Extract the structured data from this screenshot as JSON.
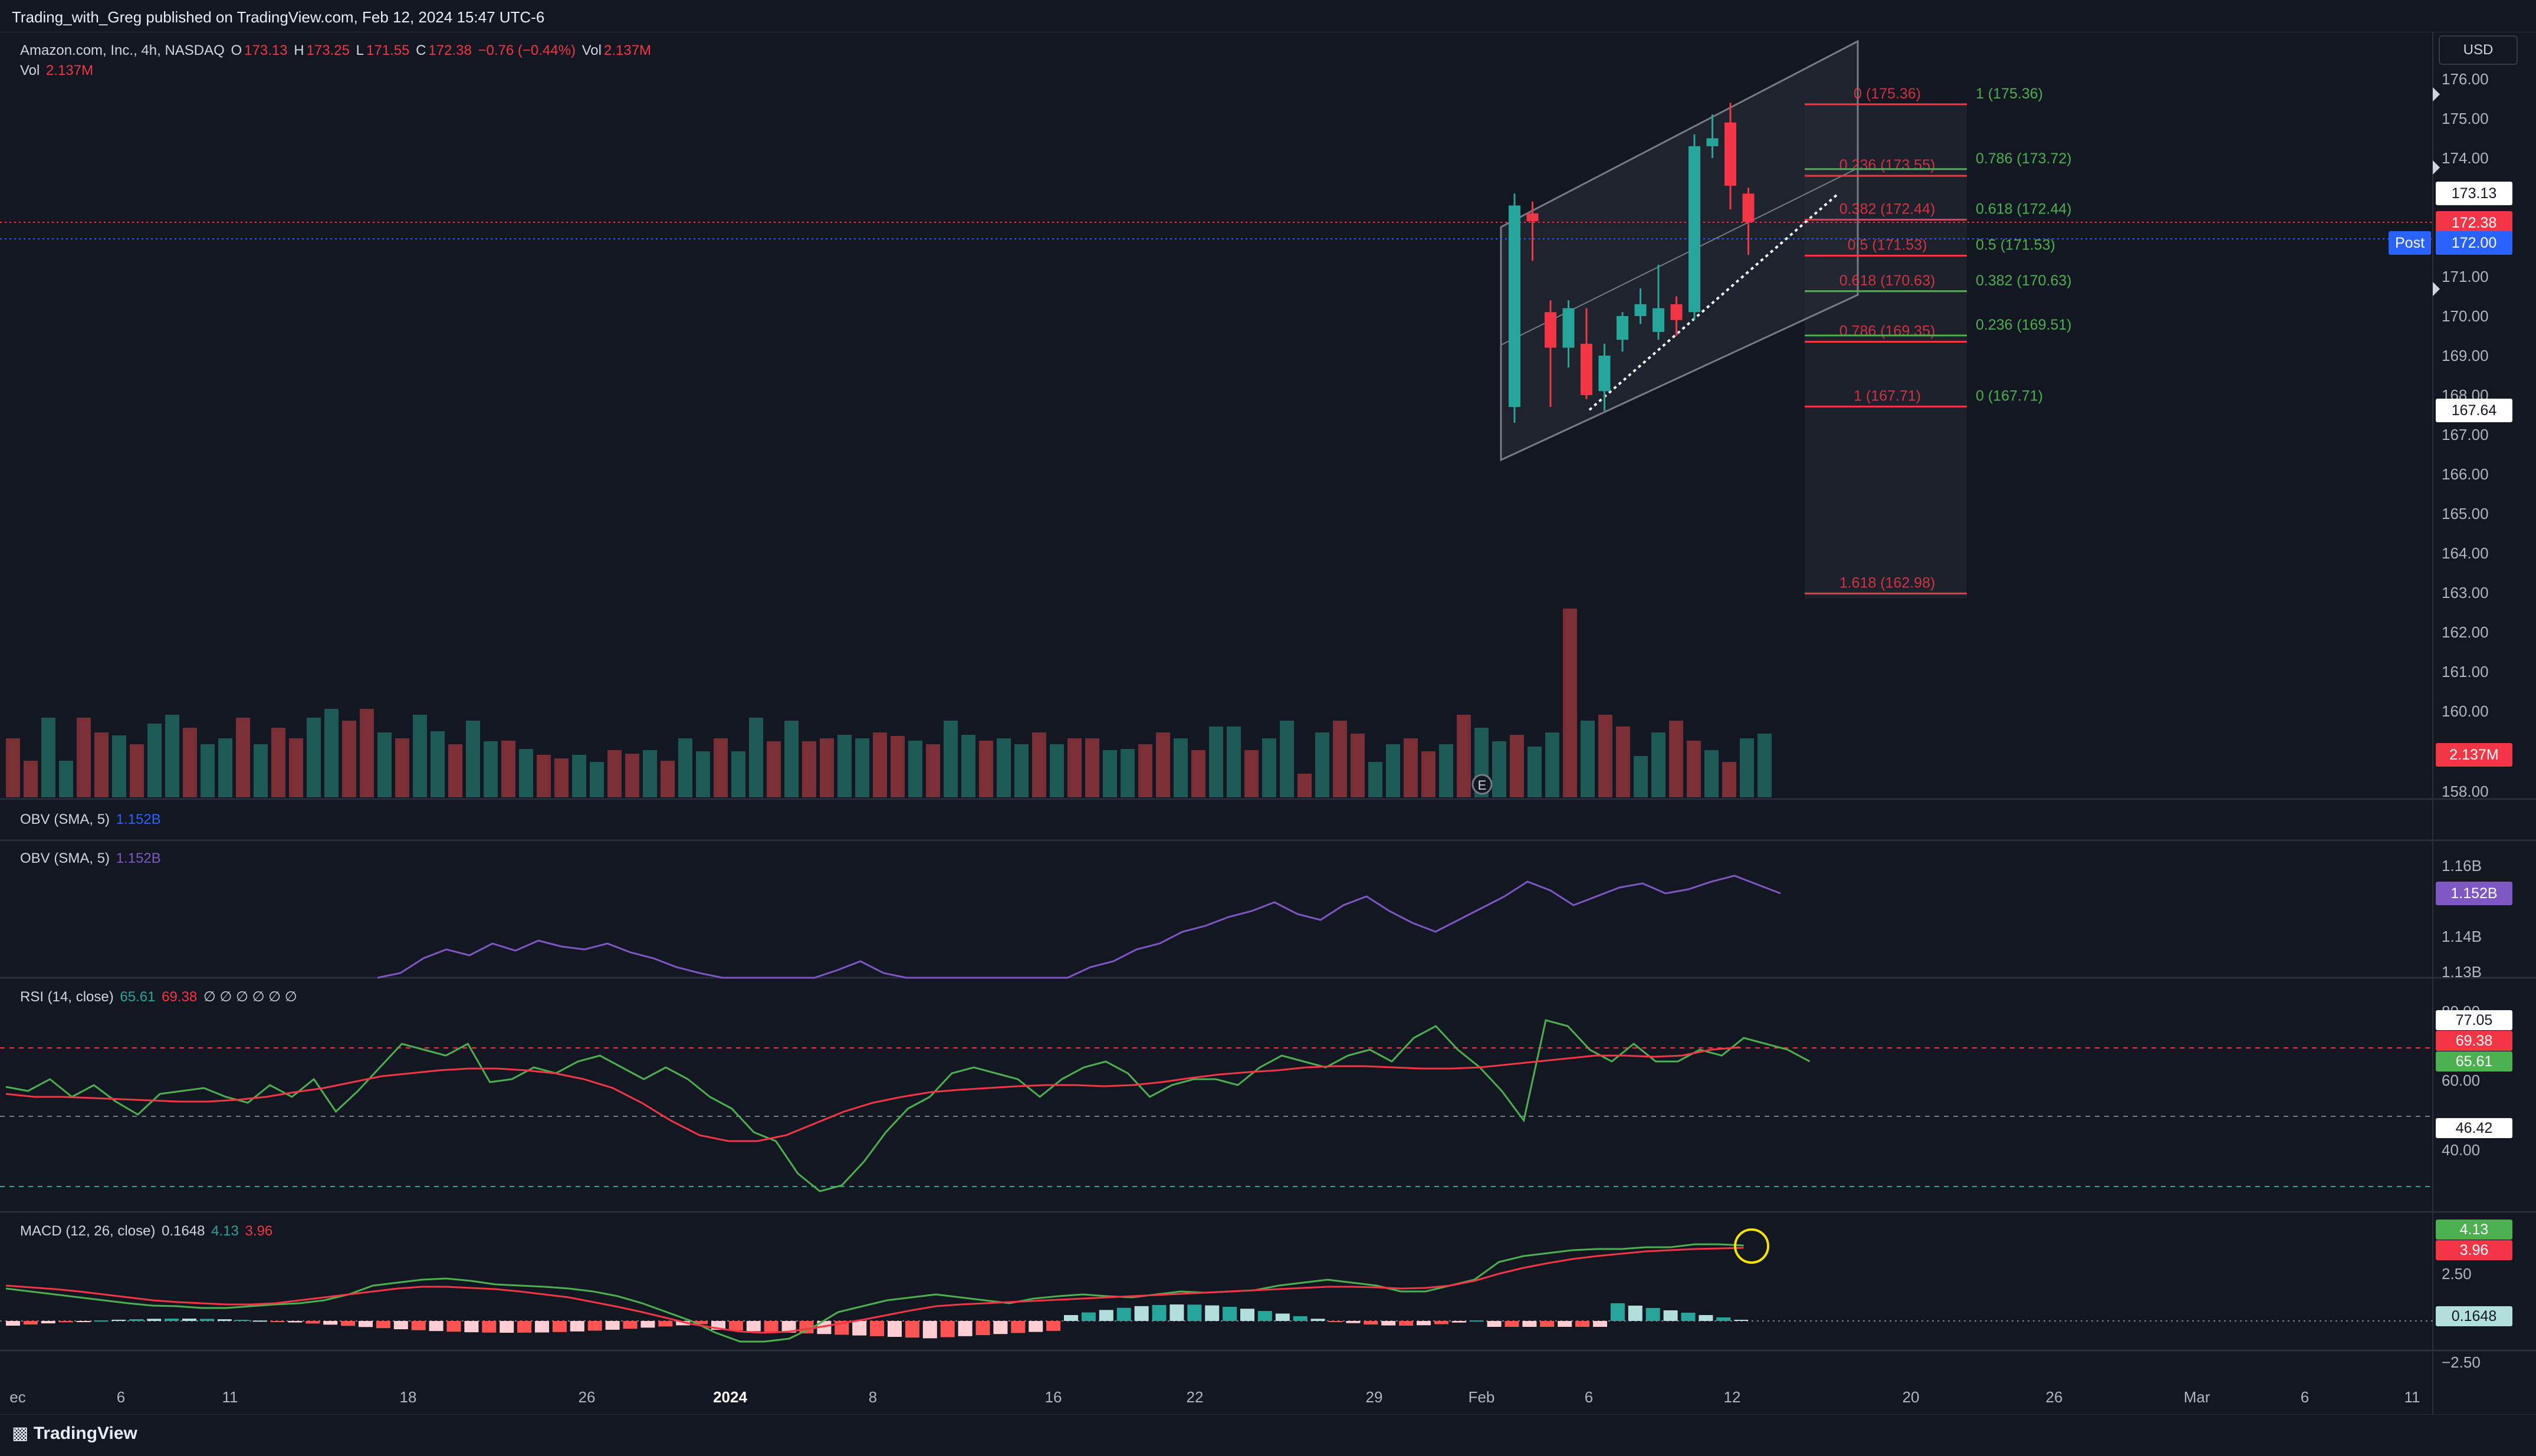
{
  "header": {
    "published": "Trading_with_Greg published on TradingView.com, Feb 12, 2024 15:47 UTC-6"
  },
  "symbol": {
    "name": "Amazon.com, Inc., 4h, NASDAQ",
    "o_label": "O",
    "o": "173.13",
    "h_label": "H",
    "h": "173.25",
    "l_label": "L",
    "l": "171.55",
    "c_label": "C",
    "c": "172.38",
    "change": "−0.76 (−0.44%)",
    "vol_label": "Vol",
    "vol": "2.137M",
    "vol_line_label": "Vol",
    "vol_line": "2.137M"
  },
  "currency": "USD",
  "price_axis": {
    "ticks": [
      "176.00",
      "175.00",
      "174.00",
      "173.00",
      "172.00",
      "171.00",
      "170.00",
      "169.00",
      "168.00",
      "167.00",
      "166.00",
      "165.00",
      "164.00",
      "163.00",
      "162.00",
      "161.00",
      "160.00",
      "158.00"
    ],
    "open_badge": "173.13",
    "close_badge": "172.38",
    "post_label": "Post",
    "post_badge": "172.00",
    "low_badge": "167.64",
    "vol_badge": "2.137M"
  },
  "fib_left": [
    {
      "label": "0 (175.36)",
      "price": 175.36
    },
    {
      "label": "0.236 (173.55)",
      "price": 173.55
    },
    {
      "label": "0.382 (172.44)",
      "price": 172.44
    },
    {
      "label": "0.5 (171.53)",
      "price": 171.53
    },
    {
      "label": "0.618 (170.63)",
      "price": 170.63
    },
    {
      "label": "0.786 (169.35)",
      "price": 169.35
    },
    {
      "label": "1 (167.71)",
      "price": 167.71
    },
    {
      "label": "1.618 (162.98)",
      "price": 162.98
    }
  ],
  "fib_right": [
    {
      "label": "1 (175.36)",
      "price": 175.36
    },
    {
      "label": "0.786 (173.72)",
      "price": 173.72
    },
    {
      "label": "0.618 (172.44)",
      "price": 172.44
    },
    {
      "label": "0.5 (171.53)",
      "price": 171.53
    },
    {
      "label": "0.382 (170.63)",
      "price": 170.63
    },
    {
      "label": "0.236 (169.51)",
      "price": 169.51
    },
    {
      "label": "0 (167.71)",
      "price": 167.71
    }
  ],
  "candles": [
    {
      "o": 167.7,
      "h": 173.1,
      "l": 167.3,
      "c": 172.8
    },
    {
      "o": 172.6,
      "h": 172.9,
      "l": 171.4,
      "c": 172.4
    },
    {
      "o": 170.1,
      "h": 170.4,
      "l": 167.7,
      "c": 169.2
    },
    {
      "o": 169.2,
      "h": 170.4,
      "l": 168.7,
      "c": 170.2
    },
    {
      "o": 169.3,
      "h": 170.2,
      "l": 167.9,
      "c": 168.0
    },
    {
      "o": 168.1,
      "h": 169.3,
      "l": 167.6,
      "c": 169.0
    },
    {
      "o": 169.4,
      "h": 170.1,
      "l": 169.1,
      "c": 170.0
    },
    {
      "o": 170.0,
      "h": 170.7,
      "l": 169.8,
      "c": 170.3
    },
    {
      "o": 169.6,
      "h": 171.3,
      "l": 169.4,
      "c": 170.2
    },
    {
      "o": 170.3,
      "h": 170.5,
      "l": 169.5,
      "c": 169.9
    },
    {
      "o": 170.1,
      "h": 174.6,
      "l": 169.9,
      "c": 174.3
    },
    {
      "o": 174.3,
      "h": 175.1,
      "l": 174.0,
      "c": 174.5
    },
    {
      "o": 174.9,
      "h": 175.4,
      "l": 172.7,
      "c": 173.3
    },
    {
      "o": 173.1,
      "h": 173.25,
      "l": 171.55,
      "c": 172.38
    }
  ],
  "volume": {
    "up_color": "#26a69a",
    "down_color": "#f23645",
    "last": "2.137M"
  },
  "obv1": {
    "label": "OBV (SMA, 5)",
    "value": "1.152B"
  },
  "obv2": {
    "label": "OBV (SMA, 5)",
    "value": "1.152B",
    "ticks": [
      "1.16B",
      "1.14B",
      "1.13B"
    ],
    "badge": "1.152B",
    "color": "#7e57c2"
  },
  "rsi": {
    "label": "RSI (14, close)",
    "v1": "65.61",
    "v2": "69.38",
    "placeholders": "∅ ∅ ∅ ∅ ∅ ∅",
    "ticks": [
      "80.00",
      "60.00",
      "40.00"
    ],
    "b1": "77.05",
    "b2": "69.38",
    "b3": "65.61",
    "b4": "46.42"
  },
  "macd": {
    "label": "MACD (12, 26, close)",
    "hist": "0.1648",
    "macd": "4.13",
    "signal": "3.96",
    "ticks": [
      "2.50",
      "−2.50"
    ],
    "badge_macd": "4.13",
    "badge_signal": "3.96",
    "badge_hist": "0.1648"
  },
  "time_axis": [
    {
      "label": "ec",
      "bold": false
    },
    {
      "label": "6",
      "bold": false
    },
    {
      "label": "11",
      "bold": false
    },
    {
      "label": "18",
      "bold": false
    },
    {
      "label": "26",
      "bold": false
    },
    {
      "label": "2024",
      "bold": true
    },
    {
      "label": "8",
      "bold": false
    },
    {
      "label": "16",
      "bold": false
    },
    {
      "label": "22",
      "bold": false
    },
    {
      "label": "29",
      "bold": false
    },
    {
      "label": "Feb",
      "bold": false
    },
    {
      "label": "6",
      "bold": false
    },
    {
      "label": "12",
      "bold": false
    },
    {
      "label": "20",
      "bold": false
    },
    {
      "label": "26",
      "bold": false
    },
    {
      "label": "Mar",
      "bold": false
    },
    {
      "label": "6",
      "bold": false
    },
    {
      "label": "11",
      "bold": false
    }
  ],
  "earnings_marker": "E",
  "footer": {
    "brand": "TradingView"
  }
}
